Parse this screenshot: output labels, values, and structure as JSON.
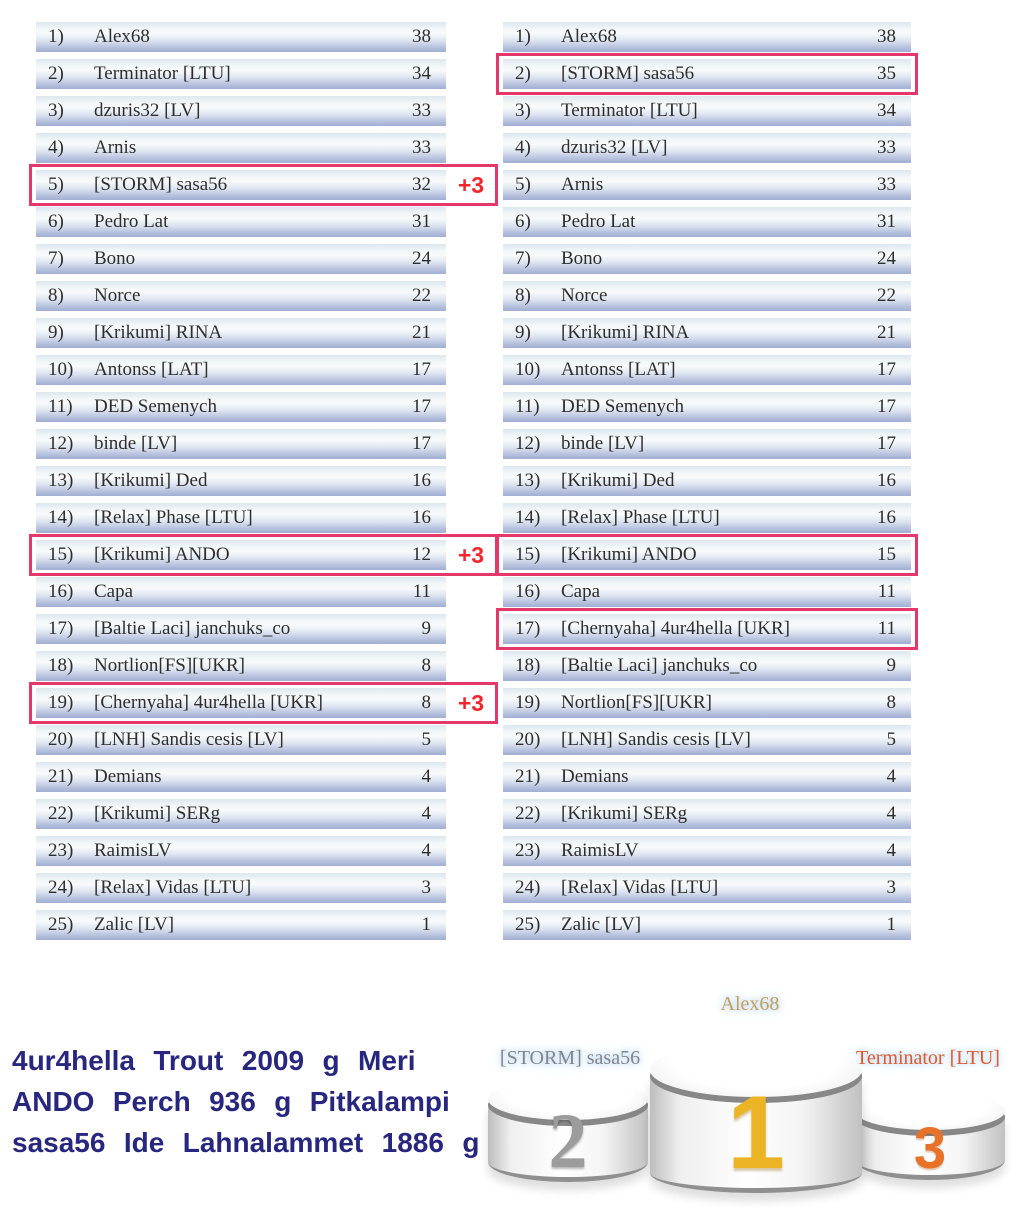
{
  "lists": {
    "before": {
      "rows": [
        {
          "rank": "1)",
          "name": "Alex68",
          "score": "38",
          "highlight": false,
          "badge": ""
        },
        {
          "rank": "2)",
          "name": "Terminator [LTU]",
          "score": "34",
          "highlight": false,
          "badge": ""
        },
        {
          "rank": "3)",
          "name": "dzuris32 [LV]",
          "score": "33",
          "highlight": false,
          "badge": ""
        },
        {
          "rank": "4)",
          "name": "Arnis",
          "score": "33",
          "highlight": false,
          "badge": ""
        },
        {
          "rank": "5)",
          "name": "[STORM] sasa56",
          "score": "32",
          "highlight": true,
          "badge": "+3"
        },
        {
          "rank": "6)",
          "name": "Pedro Lat",
          "score": "31",
          "highlight": false,
          "badge": ""
        },
        {
          "rank": "7)",
          "name": "Bono",
          "score": "24",
          "highlight": false,
          "badge": ""
        },
        {
          "rank": "8)",
          "name": "Norce",
          "score": "22",
          "highlight": false,
          "badge": ""
        },
        {
          "rank": "9)",
          "name": "[Krikumi] RINA",
          "score": "21",
          "highlight": false,
          "badge": ""
        },
        {
          "rank": "10)",
          "name": "Antonss [LAT]",
          "score": "17",
          "highlight": false,
          "badge": ""
        },
        {
          "rank": "11)",
          "name": "DED Semenych",
          "score": "17",
          "highlight": false,
          "badge": ""
        },
        {
          "rank": "12)",
          "name": "binde [LV]",
          "score": "17",
          "highlight": false,
          "badge": ""
        },
        {
          "rank": "13)",
          "name": "[Krikumi] Ded",
          "score": "16",
          "highlight": false,
          "badge": ""
        },
        {
          "rank": "14)",
          "name": "[Relax] Phase [LTU]",
          "score": "16",
          "highlight": false,
          "badge": ""
        },
        {
          "rank": "15)",
          "name": "[Krikumi] ANDO",
          "score": "12",
          "highlight": true,
          "badge": "+3"
        },
        {
          "rank": "16)",
          "name": "Capa",
          "score": "11",
          "highlight": false,
          "badge": ""
        },
        {
          "rank": "17)",
          "name": "[Baltie Laci] janchuks_co",
          "score": "9",
          "highlight": false,
          "badge": ""
        },
        {
          "rank": "18)",
          "name": "Nortlion[FS][UKR]",
          "score": "8",
          "highlight": false,
          "badge": ""
        },
        {
          "rank": "19)",
          "name": "[Chernyaha] 4ur4hella [UKR]",
          "score": "8",
          "highlight": true,
          "badge": "+3"
        },
        {
          "rank": "20)",
          "name": "[LNH] Sandis cesis [LV]",
          "score": "5",
          "highlight": false,
          "badge": ""
        },
        {
          "rank": "21)",
          "name": "Demians",
          "score": "4",
          "highlight": false,
          "badge": ""
        },
        {
          "rank": "22)",
          "name": "[Krikumi] SERg",
          "score": "4",
          "highlight": false,
          "badge": ""
        },
        {
          "rank": "23)",
          "name": "RaimisLV",
          "score": "4",
          "highlight": false,
          "badge": ""
        },
        {
          "rank": "24)",
          "name": "[Relax] Vidas [LTU]",
          "score": "3",
          "highlight": false,
          "badge": ""
        },
        {
          "rank": "25)",
          "name": "Zalic [LV]",
          "score": "1",
          "highlight": false,
          "badge": ""
        }
      ]
    },
    "after": {
      "rows": [
        {
          "rank": "1)",
          "name": "Alex68",
          "score": "38",
          "highlight": false,
          "badge": ""
        },
        {
          "rank": "2)",
          "name": "[STORM] sasa56",
          "score": "35",
          "highlight": true,
          "badge": ""
        },
        {
          "rank": "3)",
          "name": "Terminator [LTU]",
          "score": "34",
          "highlight": false,
          "badge": ""
        },
        {
          "rank": "4)",
          "name": "dzuris32 [LV]",
          "score": "33",
          "highlight": false,
          "badge": ""
        },
        {
          "rank": "5)",
          "name": "Arnis",
          "score": "33",
          "highlight": false,
          "badge": ""
        },
        {
          "rank": "6)",
          "name": "Pedro Lat",
          "score": "31",
          "highlight": false,
          "badge": ""
        },
        {
          "rank": "7)",
          "name": "Bono",
          "score": "24",
          "highlight": false,
          "badge": ""
        },
        {
          "rank": "8)",
          "name": "Norce",
          "score": "22",
          "highlight": false,
          "badge": ""
        },
        {
          "rank": "9)",
          "name": "[Krikumi] RINA",
          "score": "21",
          "highlight": false,
          "badge": ""
        },
        {
          "rank": "10)",
          "name": "Antonss [LAT]",
          "score": "17",
          "highlight": false,
          "badge": ""
        },
        {
          "rank": "11)",
          "name": "DED Semenych",
          "score": "17",
          "highlight": false,
          "badge": ""
        },
        {
          "rank": "12)",
          "name": "binde [LV]",
          "score": "17",
          "highlight": false,
          "badge": ""
        },
        {
          "rank": "13)",
          "name": "[Krikumi] Ded",
          "score": "16",
          "highlight": false,
          "badge": ""
        },
        {
          "rank": "14)",
          "name": "[Relax] Phase [LTU]",
          "score": "16",
          "highlight": false,
          "badge": ""
        },
        {
          "rank": "15)",
          "name": "[Krikumi] ANDO",
          "score": "15",
          "highlight": true,
          "badge": ""
        },
        {
          "rank": "16)",
          "name": "Capa",
          "score": "11",
          "highlight": false,
          "badge": ""
        },
        {
          "rank": "17)",
          "name": "[Chernyaha] 4ur4hella [UKR]",
          "score": "11",
          "highlight": true,
          "badge": ""
        },
        {
          "rank": "18)",
          "name": "[Baltie Laci] janchuks_co",
          "score": "9",
          "highlight": false,
          "badge": ""
        },
        {
          "rank": "19)",
          "name": "Nortlion[FS][UKR]",
          "score": "8",
          "highlight": false,
          "badge": ""
        },
        {
          "rank": "20)",
          "name": "[LNH] Sandis cesis [LV]",
          "score": "5",
          "highlight": false,
          "badge": ""
        },
        {
          "rank": "21)",
          "name": "Demians",
          "score": "4",
          "highlight": false,
          "badge": ""
        },
        {
          "rank": "22)",
          "name": "[Krikumi] SERg",
          "score": "4",
          "highlight": false,
          "badge": ""
        },
        {
          "rank": "23)",
          "name": "RaimisLV",
          "score": "4",
          "highlight": false,
          "badge": ""
        },
        {
          "rank": "24)",
          "name": "[Relax] Vidas [LTU]",
          "score": "3",
          "highlight": false,
          "badge": ""
        },
        {
          "rank": "25)",
          "name": "Zalic [LV]",
          "score": "1",
          "highlight": false,
          "badge": ""
        }
      ]
    }
  },
  "summary_note": {
    "lines": [
      "4ur4hella Trout 2009 g Meri",
      "ANDO Perch 936 g Pitkalampi",
      "sasa56 Ide Lahnalammet 1886 g"
    ]
  },
  "podium": {
    "first": {
      "label": "Alex68",
      "number": "1"
    },
    "second": {
      "label": "[STORM] sasa56",
      "number": "2"
    },
    "third": {
      "label": "Terminator [LTU]",
      "number": "3"
    }
  },
  "colors": {
    "box-accent": "#e5386a",
    "badge-red": "#f3262e",
    "note-navy": "#28277f",
    "gold": "#ecb425",
    "silver": "#9c9c9c",
    "bronze": "#e87227",
    "label-gold": "#c3a05c",
    "label-gray": "#84868b",
    "label-orange": "#de5a2e"
  }
}
